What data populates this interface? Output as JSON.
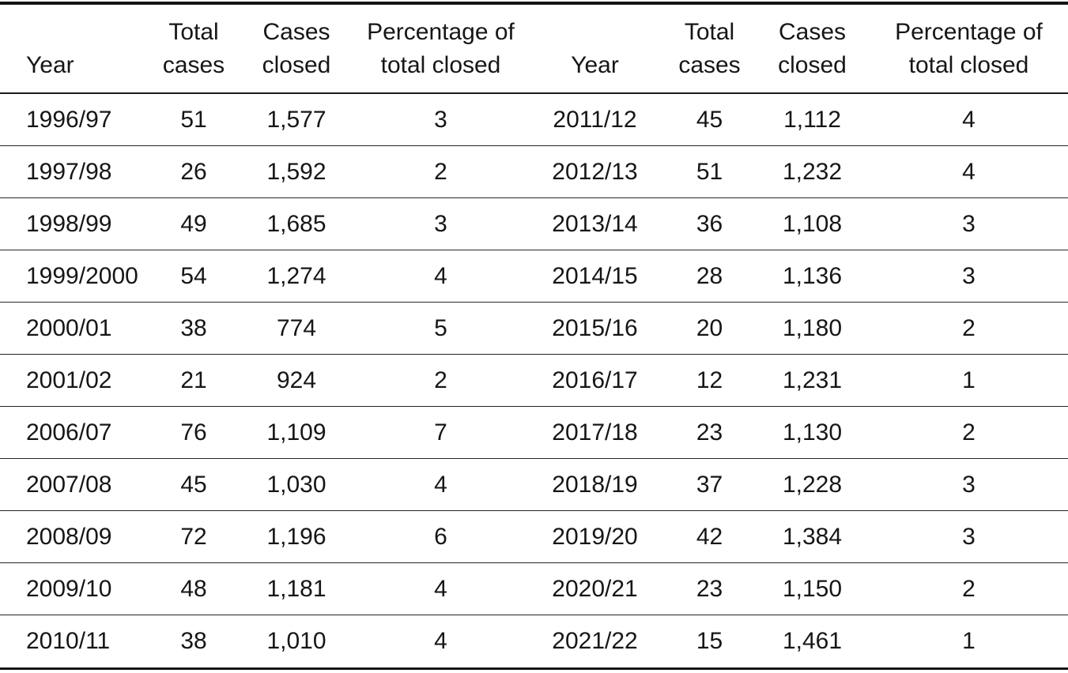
{
  "table": {
    "description": "Cases per year with closure statistics, two column groups",
    "header": [
      {
        "line1": "",
        "line2": "Year"
      },
      {
        "line1": "Total",
        "line2": "cases"
      },
      {
        "line1": "Cases",
        "line2": "closed"
      },
      {
        "line1": "Percentage of",
        "line2": "total closed"
      },
      {
        "line1": "",
        "line2": "Year"
      },
      {
        "line1": "Total",
        "line2": "cases"
      },
      {
        "line1": "Cases",
        "line2": "closed"
      },
      {
        "line1": "Percentage of",
        "line2": "total closed"
      }
    ],
    "column_ids": [
      "year",
      "total-cases",
      "cases-closed",
      "percentage-closed",
      "year",
      "total-cases",
      "cases-closed",
      "percentage-closed"
    ],
    "rows": [
      [
        "1996/97",
        "51",
        "1,577",
        "3",
        "2011/12",
        "45",
        "1,112",
        "4"
      ],
      [
        "1997/98",
        "26",
        "1,592",
        "2",
        "2012/13",
        "51",
        "1,232",
        "4"
      ],
      [
        "1998/99",
        "49",
        "1,685",
        "3",
        "2013/14",
        "36",
        "1,108",
        "3"
      ],
      [
        "1999/2000",
        "54",
        "1,274",
        "4",
        "2014/15",
        "28",
        "1,136",
        "3"
      ],
      [
        "2000/01",
        "38",
        "774",
        "5",
        "2015/16",
        "20",
        "1,180",
        "2"
      ],
      [
        "2001/02",
        "21",
        "924",
        "2",
        "2016/17",
        "12",
        "1,231",
        "1"
      ],
      [
        "2006/07",
        "76",
        "1,109",
        "7",
        "2017/18",
        "23",
        "1,130",
        "2"
      ],
      [
        "2007/08",
        "45",
        "1,030",
        "4",
        "2018/19",
        "37",
        "1,228",
        "3"
      ],
      [
        "2008/09",
        "72",
        "1,196",
        "6",
        "2019/20",
        "42",
        "1,384",
        "3"
      ],
      [
        "2009/10",
        "48",
        "1,181",
        "4",
        "2020/21",
        "23",
        "1,150",
        "2"
      ],
      [
        "2010/11",
        "38",
        "1,010",
        "4",
        "2021/22",
        "15",
        "1,461",
        "1"
      ]
    ],
    "colors": {
      "text": "#161616",
      "rule": "#1c1c1c",
      "background": "#ffffff"
    }
  }
}
